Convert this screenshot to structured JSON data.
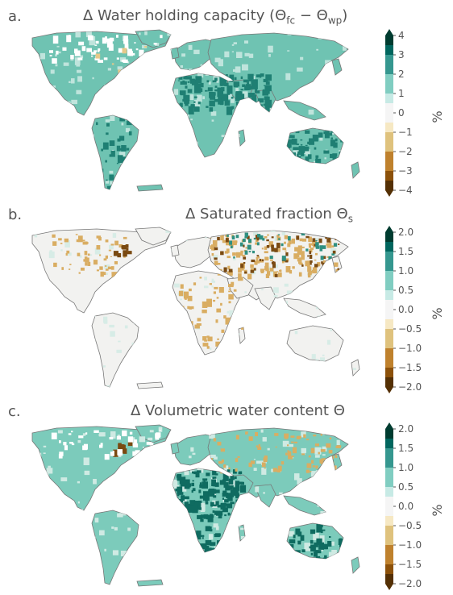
{
  "panels": [
    {
      "label": "a.",
      "title_prefix": "Δ Water holding capacity (Θ",
      "title_sub1": "fc",
      "title_mid": " − Θ",
      "title_sub2": "wp",
      "title_suffix": ")",
      "colorbar": {
        "unit": "%",
        "ticks": [
          "4",
          "3",
          "2",
          "1",
          "0",
          "−1",
          "−2",
          "−3",
          "−4"
        ],
        "range": [
          -4,
          4
        ],
        "extend": "both"
      },
      "colors": {
        "land": "#6fc3b2",
        "strong": "#1f7f73",
        "weak": "#bfe4dc",
        "neg": "#e6c98a"
      }
    },
    {
      "label": "b.",
      "title_prefix": "Δ Saturated fraction Θ",
      "title_sub1": "s",
      "colorbar": {
        "unit": "%",
        "ticks": [
          "2.0",
          "1.5",
          "1.0",
          "0.5",
          "0.0",
          "−0.5",
          "−1.0",
          "−1.5",
          "−2.0"
        ],
        "range": [
          -2,
          2
        ],
        "extend": "both"
      },
      "colors": {
        "land": "#f2f2f0",
        "strong": "#2f8f80",
        "weak": "#d7ece6",
        "neg": "#d9ad62",
        "strongneg": "#7a4a12"
      }
    },
    {
      "label": "c.",
      "title_prefix": "Δ  Volumetric water content Θ",
      "colorbar": {
        "unit": "%",
        "ticks": [
          "2.0",
          "1.5",
          "1.0",
          "0.5",
          "0.0",
          "−0.5",
          "−1.0",
          "−1.5",
          "−2.0"
        ],
        "range": [
          -2,
          2
        ],
        "extend": "both"
      },
      "colors": {
        "land": "#7ccbbb",
        "strong": "#0f6b60",
        "weak": "#cfeae3",
        "neg": "#d9ad62",
        "strongneg": "#7a4a12"
      }
    }
  ],
  "palette": [
    "#543005",
    "#8c510a",
    "#bf812d",
    "#dfc27d",
    "#f6e8c3",
    "#f5f5f5",
    "#c7eae5",
    "#80cdc1",
    "#35978f",
    "#01665e",
    "#003c30"
  ]
}
